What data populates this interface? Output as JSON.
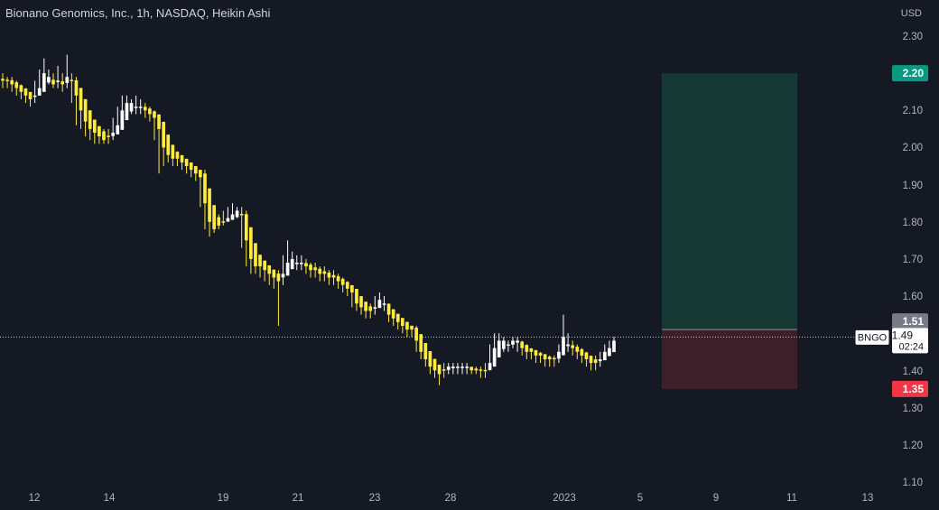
{
  "header": {
    "title": "Bionano Genomics, Inc., 1h, NASDAQ, Heikin Ashi"
  },
  "colors": {
    "background": "#151924",
    "up_candle": "#ffffff",
    "down_candle": "#ffeb3b",
    "target_zone": "#163832",
    "stop_zone": "#3d1f2a",
    "target_label_bg": "#089981",
    "stop_label_bg": "#f23645",
    "entry_label_bg": "#787b86",
    "axis_text": "#b2b5be"
  },
  "chart_data": {
    "type": "candlestick",
    "title": "Bionano Genomics, Inc., 1h, NASDAQ, Heikin Ashi",
    "symbol": "BNGO",
    "currency": "USD",
    "y_ticks": [
      "2.30",
      "2.10",
      "2.00",
      "1.90",
      "1.80",
      "1.70",
      "1.60",
      "1.40",
      "1.30",
      "1.20",
      "1.10"
    ],
    "x_ticks": [
      "12",
      "14",
      "19",
      "21",
      "23",
      "28",
      "2023",
      "5",
      "9",
      "11",
      "13"
    ],
    "last_price": "1.49",
    "last_price_value": 1.49,
    "countdown": "02:24",
    "position": {
      "target_label": "2.20",
      "entry_label": "1.51",
      "stop_label": "1.35",
      "target": 2.2,
      "entry": 1.51,
      "stop": 1.35
    },
    "close_series": [
      2.18,
      2.18,
      2.17,
      2.16,
      2.15,
      2.14,
      2.13,
      2.14,
      2.16,
      2.2,
      2.19,
      2.17,
      2.18,
      2.17,
      2.19,
      2.18,
      2.14,
      2.1,
      2.07,
      2.05,
      2.04,
      2.03,
      2.02,
      2.03,
      2.04,
      2.06,
      2.1,
      2.12,
      2.12,
      2.11,
      2.11,
      2.1,
      2.09,
      2.08,
      2.05,
      2.0,
      1.98,
      1.97,
      1.97,
      1.96,
      1.95,
      1.94,
      1.93,
      1.92,
      1.85,
      1.8,
      1.78,
      1.79,
      1.8,
      1.81,
      1.82,
      1.83,
      1.82,
      1.75,
      1.7,
      1.68,
      1.68,
      1.67,
      1.66,
      1.65,
      1.64,
      1.66,
      1.69,
      1.7,
      1.69,
      1.69,
      1.68,
      1.67,
      1.67,
      1.66,
      1.66,
      1.65,
      1.65,
      1.64,
      1.63,
      1.62,
      1.61,
      1.58,
      1.57,
      1.56,
      1.56,
      1.57,
      1.59,
      1.58,
      1.55,
      1.54,
      1.53,
      1.52,
      1.51,
      1.51,
      1.48,
      1.45,
      1.43,
      1.41,
      1.4,
      1.39,
      1.4,
      1.41,
      1.41,
      1.41,
      1.41,
      1.41,
      1.4,
      1.4,
      1.4,
      1.4,
      1.42,
      1.46,
      1.48,
      1.48,
      1.47,
      1.48,
      1.48,
      1.46,
      1.45,
      1.45,
      1.44,
      1.44,
      1.43,
      1.43,
      1.43,
      1.45,
      1.49,
      1.47,
      1.46,
      1.45,
      1.44,
      1.43,
      1.42,
      1.42,
      1.43,
      1.45,
      1.46,
      1.48
    ],
    "high_series": [
      2.2,
      2.19,
      2.19,
      2.18,
      2.17,
      2.16,
      2.15,
      2.18,
      2.21,
      2.24,
      2.21,
      2.2,
      2.22,
      2.2,
      2.25,
      2.2,
      2.19,
      2.13,
      2.09,
      2.07,
      2.06,
      2.05,
      2.05,
      2.05,
      2.08,
      2.11,
      2.14,
      2.14,
      2.13,
      2.14,
      2.13,
      2.12,
      2.11,
      2.1,
      2.09,
      2.02,
      2.0,
      1.99,
      1.99,
      1.98,
      1.97,
      1.96,
      1.95,
      1.94,
      1.94,
      1.83,
      1.81,
      1.82,
      1.83,
      1.84,
      1.85,
      1.84,
      1.84,
      1.83,
      1.72,
      1.7,
      1.7,
      1.69,
      1.68,
      1.67,
      1.67,
      1.71,
      1.75,
      1.72,
      1.71,
      1.71,
      1.7,
      1.69,
      1.69,
      1.68,
      1.68,
      1.67,
      1.67,
      1.66,
      1.65,
      1.64,
      1.63,
      1.61,
      1.59,
      1.58,
      1.58,
      1.6,
      1.61,
      1.6,
      1.58,
      1.56,
      1.55,
      1.54,
      1.53,
      1.52,
      1.52,
      1.48,
      1.45,
      1.43,
      1.42,
      1.41,
      1.42,
      1.42,
      1.42,
      1.42,
      1.42,
      1.42,
      1.41,
      1.41,
      1.41,
      1.42,
      1.47,
      1.5,
      1.5,
      1.49,
      1.48,
      1.49,
      1.49,
      1.48,
      1.47,
      1.46,
      1.45,
      1.45,
      1.44,
      1.44,
      1.44,
      1.47,
      1.55,
      1.5,
      1.48,
      1.47,
      1.46,
      1.45,
      1.44,
      1.44,
      1.45,
      1.47,
      1.48,
      1.49
    ],
    "low_series": [
      2.16,
      2.16,
      2.15,
      2.14,
      2.13,
      2.12,
      2.11,
      2.12,
      2.14,
      2.17,
      2.17,
      2.16,
      2.16,
      2.15,
      2.16,
      2.12,
      2.06,
      2.05,
      2.03,
      2.02,
      2.01,
      2.01,
      2.01,
      2.01,
      2.02,
      2.04,
      2.08,
      2.1,
      2.09,
      2.09,
      2.09,
      2.08,
      2.07,
      2.02,
      1.93,
      1.95,
      1.96,
      1.95,
      1.95,
      1.94,
      1.93,
      1.92,
      1.91,
      1.84,
      1.78,
      1.76,
      1.77,
      1.78,
      1.79,
      1.8,
      1.81,
      1.81,
      1.73,
      1.68,
      1.66,
      1.66,
      1.65,
      1.64,
      1.63,
      1.62,
      1.52,
      1.63,
      1.67,
      1.68,
      1.67,
      1.67,
      1.66,
      1.65,
      1.65,
      1.64,
      1.64,
      1.63,
      1.63,
      1.62,
      1.61,
      1.6,
      1.57,
      1.56,
      1.55,
      1.54,
      1.54,
      1.55,
      1.57,
      1.56,
      1.53,
      1.52,
      1.51,
      1.5,
      1.49,
      1.49,
      1.45,
      1.43,
      1.41,
      1.39,
      1.38,
      1.36,
      1.38,
      1.39,
      1.39,
      1.39,
      1.39,
      1.39,
      1.39,
      1.39,
      1.38,
      1.38,
      1.4,
      1.43,
      1.45,
      1.45,
      1.45,
      1.46,
      1.45,
      1.44,
      1.43,
      1.43,
      1.42,
      1.42,
      1.41,
      1.41,
      1.41,
      1.42,
      1.46,
      1.45,
      1.44,
      1.43,
      1.42,
      1.41,
      1.4,
      1.4,
      1.41,
      1.43,
      1.44,
      1.45
    ]
  }
}
